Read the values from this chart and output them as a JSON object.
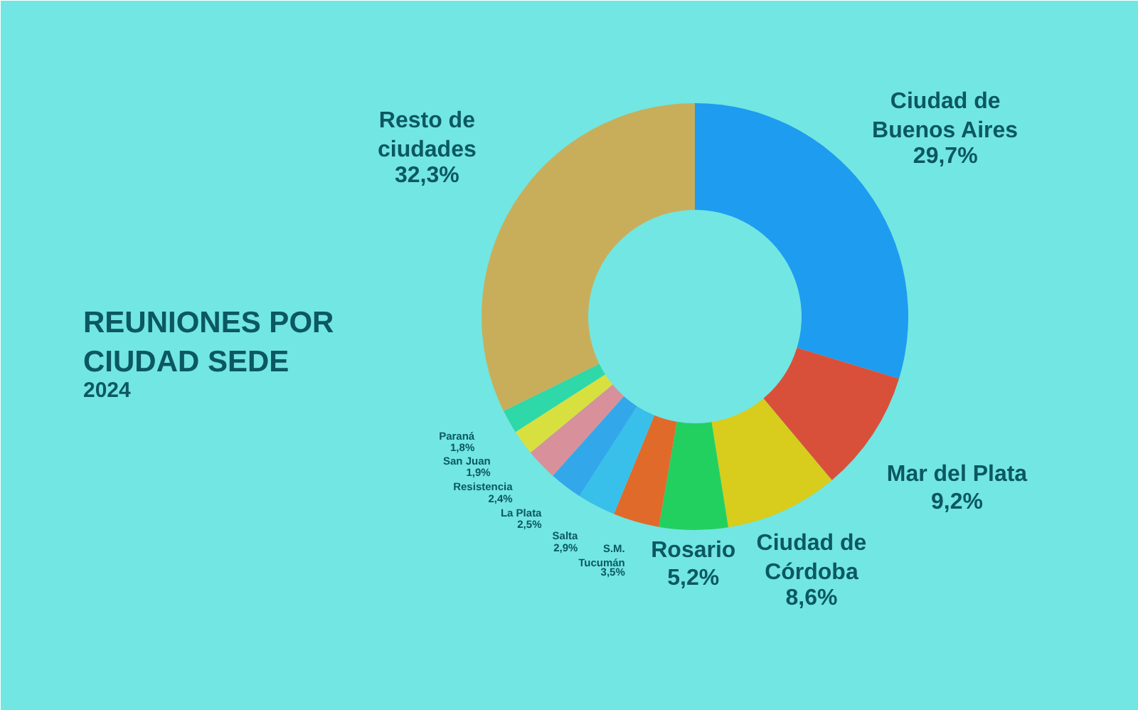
{
  "chart_data": {
    "type": "donut",
    "title": "REUNIONES POR CIUDAD SEDE",
    "subtitle": "2024",
    "categories": [
      "Ciudad de Buenos Aires",
      "Mar del Plata",
      "Ciudad de Córdoba",
      "Rosario",
      "S.M. Tucumán",
      "Salta",
      "La Plata",
      "Resistencia",
      "San Juan",
      "Paraná",
      "Resto de ciudades"
    ],
    "values": [
      29.7,
      9.2,
      8.6,
      5.2,
      3.5,
      2.9,
      2.5,
      2.4,
      1.9,
      1.8,
      32.3
    ],
    "value_labels": [
      "29,7%",
      "9,2%",
      "8,6%",
      "5,2%",
      "3,5%",
      "2,9%",
      "2,5%",
      "2,4%",
      "1,9%",
      "1,8%",
      "32,3%"
    ],
    "colors": [
      "#1e9cf0",
      "#d9503a",
      "#d8cc1c",
      "#22d060",
      "#e06a2a",
      "#38c0ea",
      "#32a8ea",
      "#d8909a",
      "#d8e040",
      "#2ed8a8",
      "#c8ae5a"
    ]
  }
}
